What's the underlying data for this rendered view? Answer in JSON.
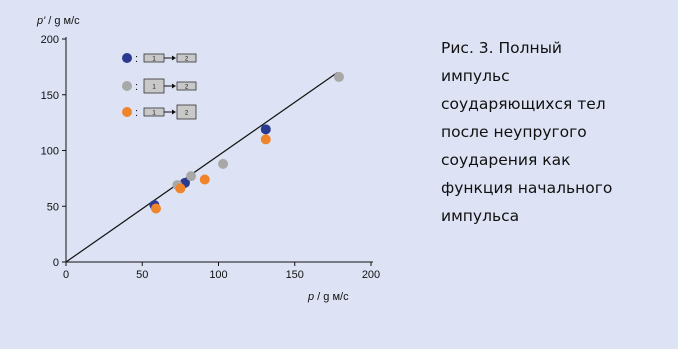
{
  "caption": "Рис. 3. Полный\nимпульс\nсоударяющихся тел\nпосле неупругого\nсоударения как\nфункция начального\nимпульса",
  "colors": {
    "background": "#dde3f4",
    "blue": "#2b3a8f",
    "gray": "#a8a8a8",
    "orange": "#f0842b"
  },
  "chart_data": {
    "type": "scatter",
    "xlabel_var": "p",
    "xlabel_unit": " / g м/с",
    "ylabel_var": "p'",
    "ylabel_unit": " / g м/с",
    "xlim": [
      0,
      200
    ],
    "ylim": [
      0,
      200
    ],
    "x_ticks": [
      0,
      50,
      100,
      150,
      200
    ],
    "y_ticks": [
      0,
      50,
      100,
      150,
      200
    ],
    "grid": false,
    "legend_position": "top-left",
    "reference_line": {
      "from": [
        0,
        0
      ],
      "to": [
        178,
        170
      ]
    },
    "series": [
      {
        "color": "blue",
        "legend_block1": "1",
        "legend_block2": "2",
        "points": [
          [
            58,
            51
          ],
          [
            78,
            71
          ],
          [
            131,
            119
          ]
        ]
      },
      {
        "color": "gray",
        "legend_block1": "1",
        "legend_block2": "2",
        "points": [
          [
            73,
            69
          ],
          [
            82,
            77
          ],
          [
            103,
            88
          ],
          [
            179,
            166
          ]
        ]
      },
      {
        "color": "orange",
        "legend_block1": "1",
        "legend_block2": "2",
        "points": [
          [
            59,
            48
          ],
          [
            75,
            66
          ],
          [
            91,
            74
          ],
          [
            131,
            110
          ]
        ]
      }
    ]
  }
}
